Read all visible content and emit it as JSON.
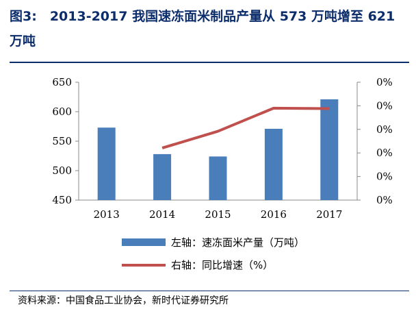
{
  "figure": {
    "title": "图3:　2013-2017 我国速冻面米制品产量从 573 万吨增至 621 万吨",
    "source": "资料来源：中国食品工业协会，新时代证券研究所"
  },
  "chart_data": {
    "type": "bar",
    "categories": [
      "2013",
      "2014",
      "2015",
      "2016",
      "2017"
    ],
    "series": [
      {
        "name": "左轴：速冻面米产量（万吨）",
        "type": "bar",
        "axis": "left",
        "values": [
          573,
          528,
          524,
          571,
          621
        ],
        "color": "#4a7ebb"
      },
      {
        "name": "右轴：同比增速（%）",
        "type": "line",
        "axis": "right",
        "values": [
          null,
          -7.9,
          -0.8,
          9.0,
          8.8
        ],
        "color": "#c0504d"
      }
    ],
    "y_left": {
      "ylim": [
        450,
        650
      ],
      "ticks": [
        "450",
        "500",
        "550",
        "600",
        "650"
      ]
    },
    "y_right": {
      "ylim": [
        -30,
        20
      ],
      "ticks": [
        "0%",
        "0%",
        "0%",
        "0%",
        "0%",
        "0%"
      ]
    },
    "grid": false,
    "legend_position": "bottom"
  }
}
